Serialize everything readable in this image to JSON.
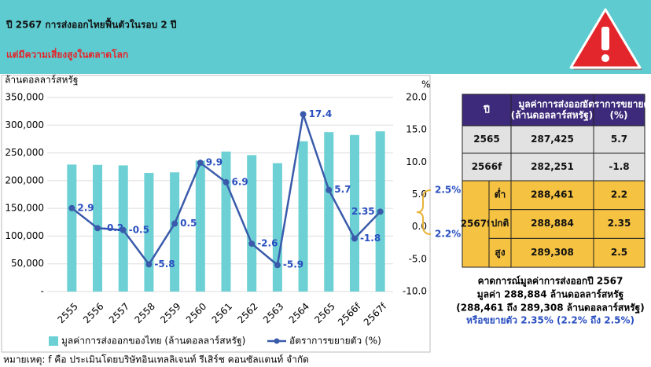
{
  "header": {
    "title": "ปี 2567 การส่งออกไทยฟื้นตัวในรอบ 2 ปี",
    "subtitle": "แต่มีความเสี่ยงสูงในตลาดโลก"
  },
  "chart_data": {
    "type": "bar",
    "y_label": "ล้านดอลลาร์สหรัฐ",
    "y2_label": "%",
    "categories": [
      "2555",
      "2556",
      "2557",
      "2558",
      "2559",
      "2560",
      "2561",
      "2562",
      "2563",
      "2564",
      "2565",
      "2566f",
      "2567f"
    ],
    "series": [
      {
        "name": "มูลค่าการส่งออกของไทย (ล้านดอลลาร์สหรัฐ)",
        "type": "bar",
        "color": "#6dd0d4",
        "values": [
          229000,
          228500,
          227500,
          214000,
          215000,
          236000,
          252500,
          246000,
          231500,
          271000,
          287425,
          282251,
          288884
        ]
      },
      {
        "name": "อัตราการขยายตัว (%)",
        "type": "line",
        "axis": "y2",
        "color": "#3a5bab",
        "values": [
          2.9,
          -0.2,
          -0.5,
          -5.8,
          0.5,
          9.9,
          6.9,
          -2.6,
          -5.9,
          17.4,
          5.7,
          -1.8,
          2.35
        ]
      }
    ],
    "ylim": [
      0,
      350000
    ],
    "yticks": [
      {
        "value": 0,
        "label": "-"
      },
      {
        "value": 50000,
        "label": "50,000"
      },
      {
        "value": 100000,
        "label": "100,000"
      },
      {
        "value": 150000,
        "label": "150,000"
      },
      {
        "value": 200000,
        "label": "200,000"
      },
      {
        "value": 250000,
        "label": "250,000"
      },
      {
        "value": 300000,
        "label": "300,000"
      },
      {
        "value": 350000,
        "label": "350,000"
      }
    ],
    "y2lim": [
      -10,
      20
    ],
    "y2ticks": [
      {
        "value": -10,
        "label": "-10.0"
      },
      {
        "value": -5,
        "label": "-5.0"
      },
      {
        "value": 0,
        "label": "0.0"
      },
      {
        "value": 5,
        "label": "5.0"
      },
      {
        "value": 10,
        "label": "10.0"
      },
      {
        "value": 15,
        "label": "15.0"
      },
      {
        "value": 20,
        "label": "20.0"
      }
    ],
    "grid": true,
    "annotations": [
      "2.5%",
      "2.2%"
    ]
  },
  "table": {
    "header": [
      "ปี",
      "มูลค่าการส่งออก (ล้านดอลลาร์สหรัฐ)",
      "อัตราการขยายตัว (%)"
    ],
    "rows": [
      [
        "2565",
        "287,425",
        "5.7"
      ],
      [
        "2566f",
        "282,251",
        "-1.8"
      ]
    ],
    "group": {
      "year": "2567f",
      "rows": [
        [
          "ต่ำ",
          "288,461",
          "2.2"
        ],
        [
          "ปกติ",
          "288,884",
          "2.35"
        ],
        [
          "สูง",
          "289,308",
          "2.5"
        ]
      ]
    }
  },
  "summary": [
    "คาดการณ์มูลค่าการส่งออกปี 2567",
    "มูลค่า 288,884 ล้านดอลลาร์สหรัฐ",
    "(288,461 ถึง 289,308 ล้านดอลลาร์สหรัฐ)",
    "หรือขยายตัว 2.35% (2.2% ถึง 2.5%)"
  ],
  "footnote": "หมายเหตุ: f คือ ประเมินโดยบริษัทอินเทลลิเจนท์ รีเสิร์ช คอนซัลแตนท์ จำกัด"
}
